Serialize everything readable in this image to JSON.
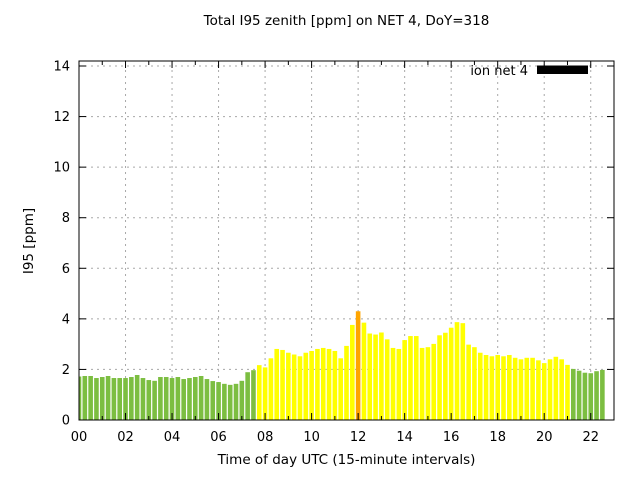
{
  "chart_data": {
    "type": "bar",
    "title": "Total I95 zenith [ppm] on NET 4, DoY=318",
    "xlabel": "Time of day UTC (15-minute intervals)",
    "ylabel": "I95 [ppm]",
    "legend": {
      "label": "ion net 4",
      "swatch_color": "#000000",
      "position": "top-right-inside"
    },
    "grid": true,
    "x_axis": {
      "unit": "hours UTC",
      "range_hours": [
        0,
        23
      ],
      "major_tick_hours": [
        0,
        2,
        4,
        6,
        8,
        10,
        12,
        14,
        16,
        18,
        20,
        22
      ],
      "major_tick_labels": [
        "00",
        "02",
        "04",
        "06",
        "08",
        "10",
        "12",
        "14",
        "16",
        "18",
        "20",
        "22"
      ],
      "minor_tick_every_hours": 1
    },
    "y_axis": {
      "range": [
        0,
        14
      ],
      "ticks": [
        0,
        2,
        4,
        6,
        8,
        10,
        12,
        14
      ]
    },
    "interval_minutes": 15,
    "start_time": "00:00",
    "end_time": "22:30",
    "palette": {
      "green": "#7CBE41",
      "yellow": "#FFFF00",
      "orange": "#FFA500"
    },
    "series": [
      {
        "name": "ion net 4",
        "values": [
          1.72,
          1.74,
          1.74,
          1.66,
          1.7,
          1.74,
          1.66,
          1.66,
          1.66,
          1.7,
          1.78,
          1.66,
          1.58,
          1.55,
          1.7,
          1.7,
          1.66,
          1.7,
          1.62,
          1.66,
          1.7,
          1.74,
          1.62,
          1.54,
          1.5,
          1.43,
          1.39,
          1.43,
          1.55,
          1.89,
          1.97,
          2.17,
          2.08,
          2.44,
          2.81,
          2.77,
          2.66,
          2.59,
          2.52,
          2.66,
          2.73,
          2.81,
          2.85,
          2.81,
          2.73,
          2.44,
          2.93,
          3.76,
          4.3,
          3.85,
          3.42,
          3.38,
          3.46,
          3.19,
          2.85,
          2.81,
          3.16,
          3.32,
          3.32,
          2.85,
          2.88,
          3.01,
          3.35,
          3.45,
          3.65,
          3.87,
          3.83,
          2.98,
          2.88,
          2.66,
          2.57,
          2.52,
          2.57,
          2.52,
          2.57,
          2.46,
          2.4,
          2.46,
          2.46,
          2.36,
          2.25,
          2.4,
          2.5,
          2.4,
          2.18,
          2.02,
          1.95,
          1.87,
          1.85,
          1.93,
          1.98
        ],
        "color_runs": [
          {
            "color": "green",
            "count": 31
          },
          {
            "color": "yellow",
            "count": 17
          },
          {
            "color": "orange",
            "count": 1
          },
          {
            "color": "yellow",
            "count": 36
          },
          {
            "color": "green",
            "count": 6
          }
        ]
      }
    ]
  }
}
